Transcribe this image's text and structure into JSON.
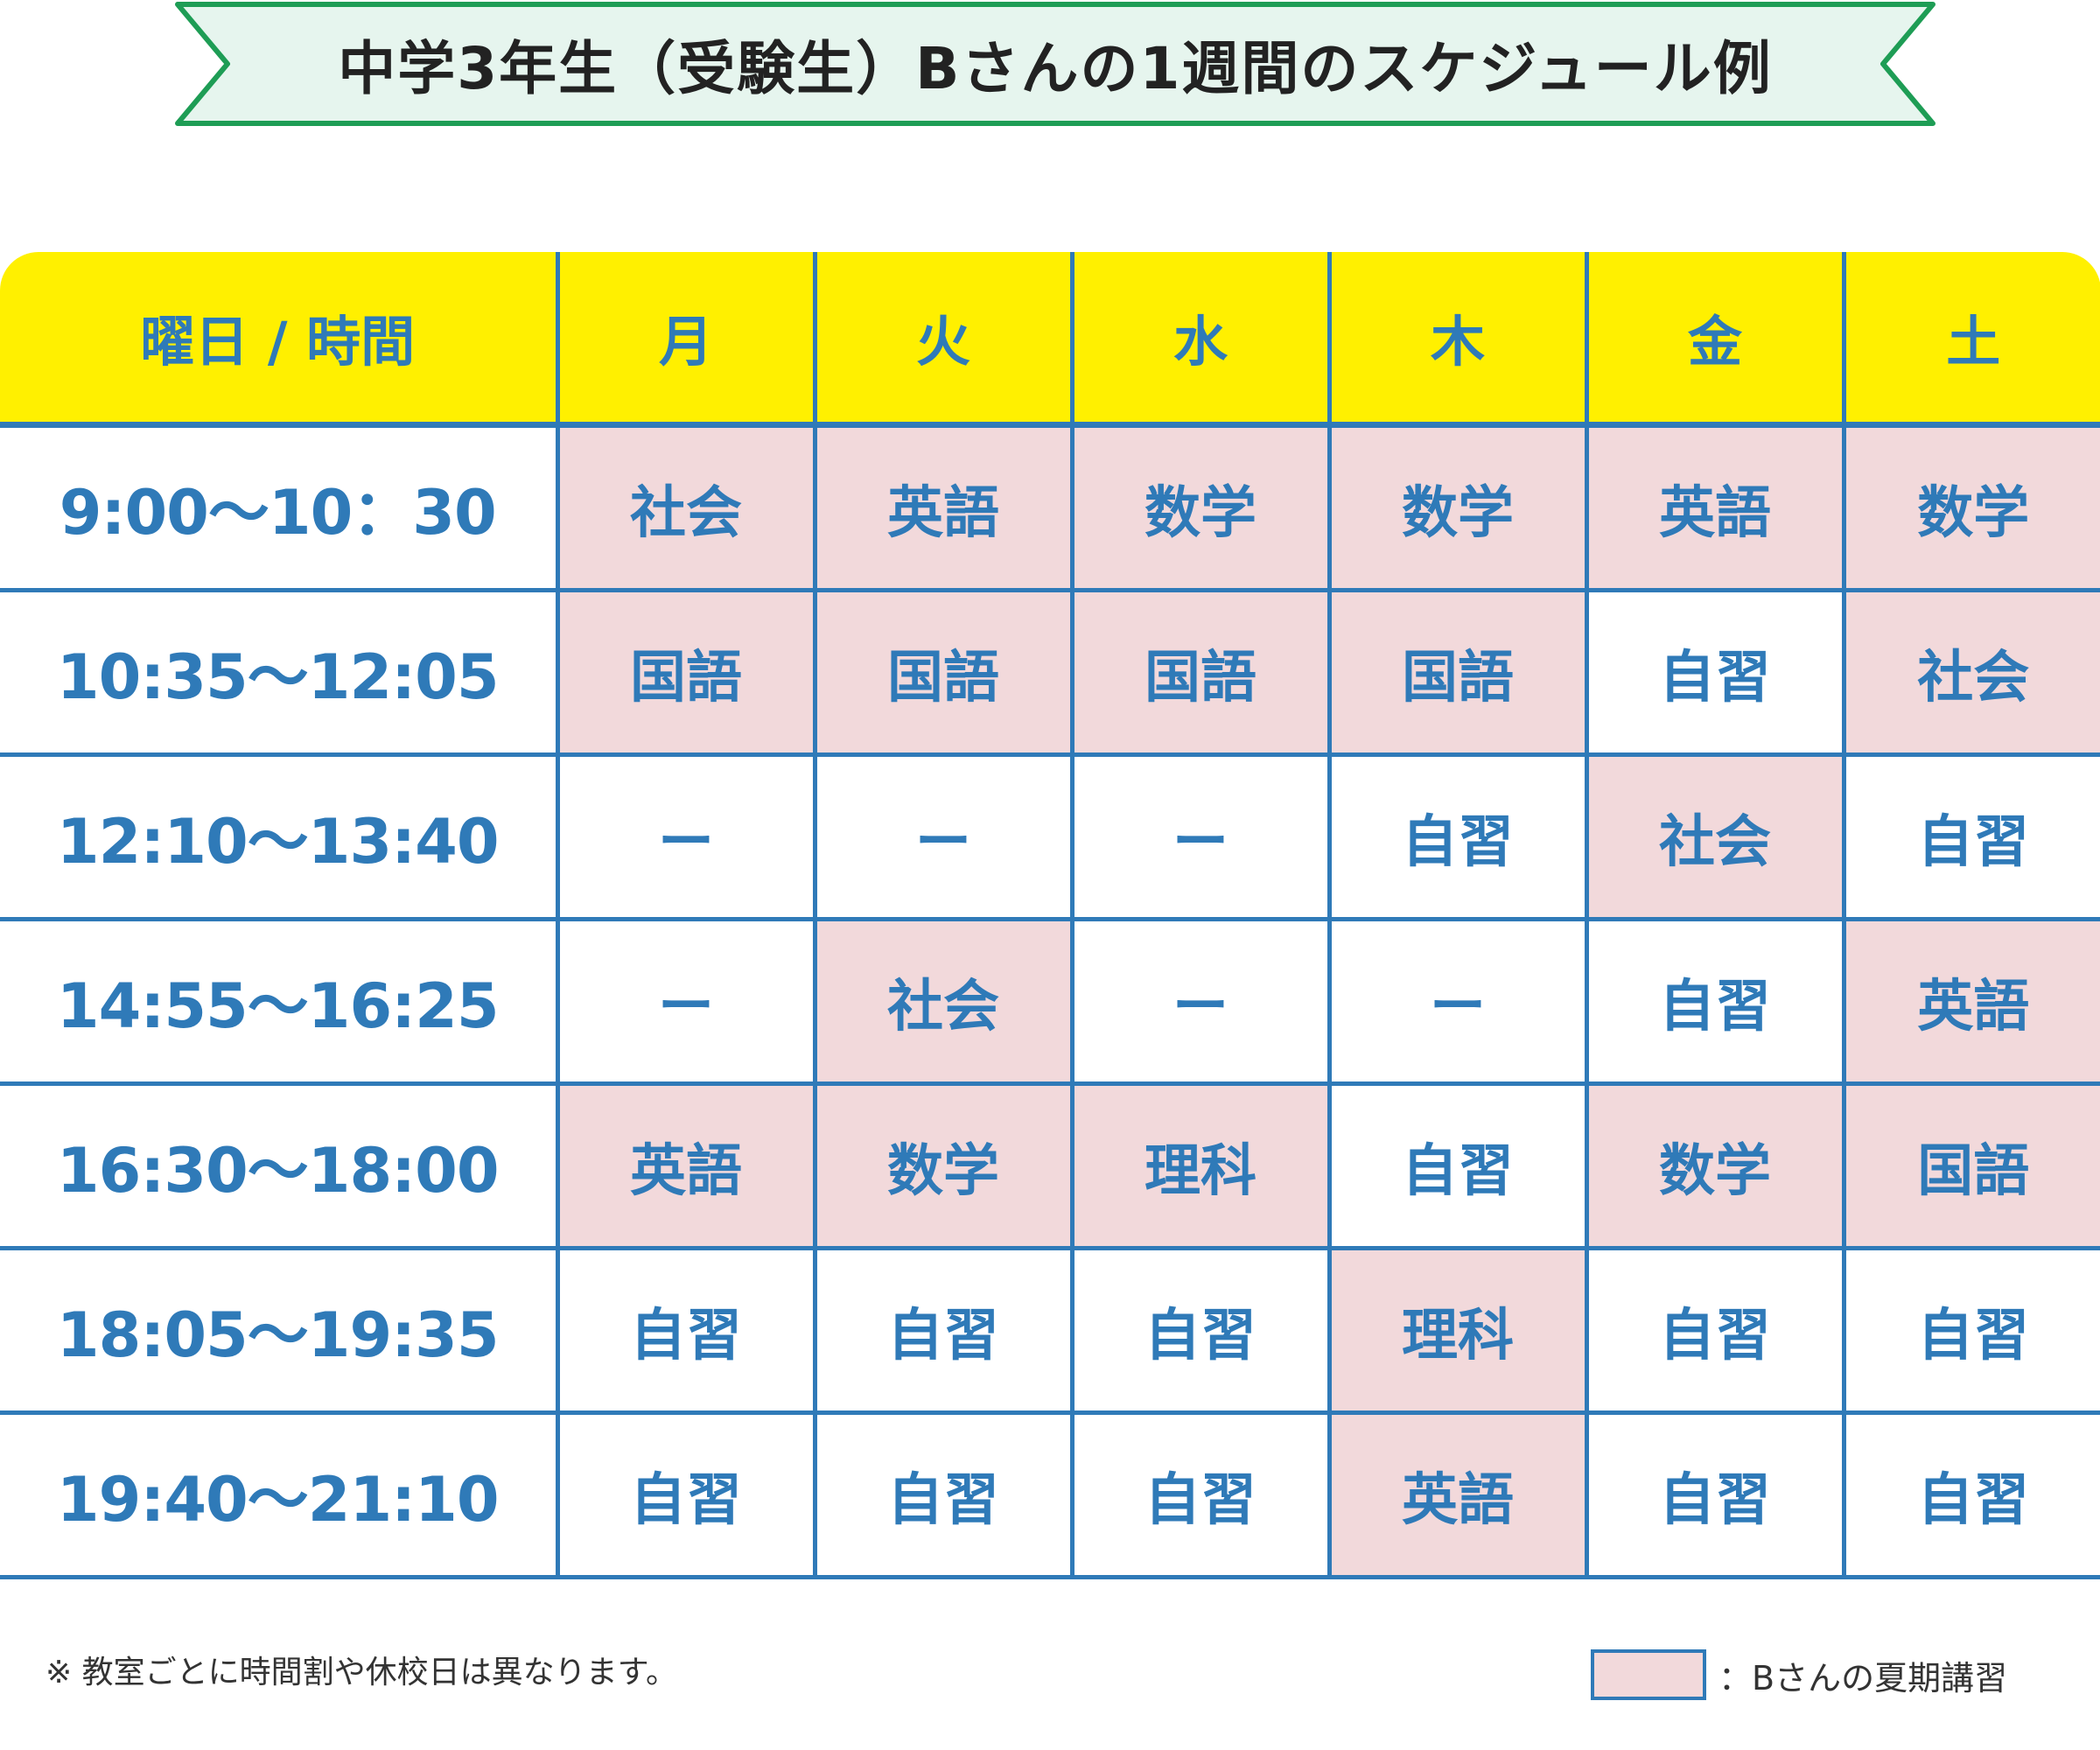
{
  "title": "中学3年生（受験生）Bさんの1週間のスケジュール例",
  "colors": {
    "banner_fill": "#e6f5ee",
    "banner_border": "#1e9d55",
    "header_fill": "#fff000",
    "grid_and_text": "#2f7ab8",
    "highlight": "#f2d9db"
  },
  "header": [
    "曜日 / 時間",
    "月",
    "火",
    "水",
    "木",
    "金",
    "土"
  ],
  "rows": [
    {
      "time": "9:00〜10：30",
      "cells": [
        {
          "text": "社会",
          "hl": true
        },
        {
          "text": "英語",
          "hl": true
        },
        {
          "text": "数学",
          "hl": true
        },
        {
          "text": "数学",
          "hl": true
        },
        {
          "text": "英語",
          "hl": true
        },
        {
          "text": "数学",
          "hl": true
        }
      ]
    },
    {
      "time": "10:35〜12:05",
      "cells": [
        {
          "text": "国語",
          "hl": true
        },
        {
          "text": "国語",
          "hl": true
        },
        {
          "text": "国語",
          "hl": true
        },
        {
          "text": "国語",
          "hl": true
        },
        {
          "text": "自習",
          "hl": false
        },
        {
          "text": "社会",
          "hl": true
        }
      ]
    },
    {
      "time": "12:10〜13:40",
      "cells": [
        {
          "text": "ー",
          "hl": false
        },
        {
          "text": "ー",
          "hl": false
        },
        {
          "text": "ー",
          "hl": false
        },
        {
          "text": "自習",
          "hl": false
        },
        {
          "text": "社会",
          "hl": true
        },
        {
          "text": "自習",
          "hl": false
        }
      ]
    },
    {
      "time": "14:55〜16:25",
      "cells": [
        {
          "text": "ー",
          "hl": false
        },
        {
          "text": "社会",
          "hl": true
        },
        {
          "text": "ー",
          "hl": false
        },
        {
          "text": "ー",
          "hl": false
        },
        {
          "text": "自習",
          "hl": false
        },
        {
          "text": "英語",
          "hl": true
        }
      ]
    },
    {
      "time": "16:30〜18:00",
      "cells": [
        {
          "text": "英語",
          "hl": true
        },
        {
          "text": "数学",
          "hl": true
        },
        {
          "text": "理科",
          "hl": true
        },
        {
          "text": "自習",
          "hl": false
        },
        {
          "text": "数学",
          "hl": true
        },
        {
          "text": "国語",
          "hl": true
        }
      ]
    },
    {
      "time": "18:05〜19:35",
      "cells": [
        {
          "text": "自習",
          "hl": false
        },
        {
          "text": "自習",
          "hl": false
        },
        {
          "text": "自習",
          "hl": false
        },
        {
          "text": "理科",
          "hl": true
        },
        {
          "text": "自習",
          "hl": false
        },
        {
          "text": "自習",
          "hl": false
        }
      ]
    },
    {
      "time": "19:40〜21:10",
      "cells": [
        {
          "text": "自習",
          "hl": false
        },
        {
          "text": "自習",
          "hl": false
        },
        {
          "text": "自習",
          "hl": false
        },
        {
          "text": "英語",
          "hl": true
        },
        {
          "text": "自習",
          "hl": false
        },
        {
          "text": "自習",
          "hl": false
        }
      ]
    }
  ],
  "footnote": "※ 教室ごとに時間割や休校日は異なります。",
  "legend": {
    "label": "：Bさんの夏期講習"
  }
}
